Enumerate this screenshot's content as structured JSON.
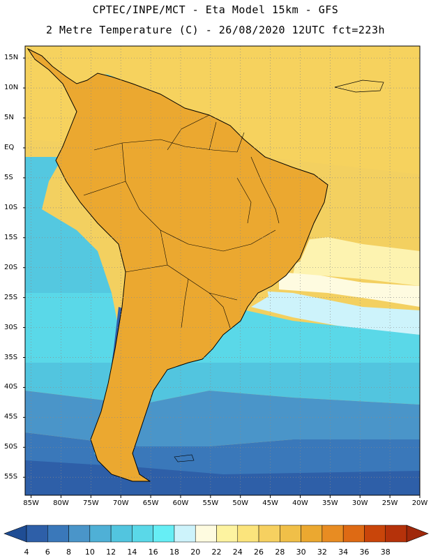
{
  "header": {
    "line1": "CPTEC/INPE/MCT -  Eta Model 15km - GFS",
    "line2": "2 Metre Temperature (C) - 26/08/2020 12UTC fct=223h"
  },
  "map": {
    "variable": "2 Metre Temperature",
    "units": "C",
    "lon_range": [
      -86,
      -20
    ],
    "lat_range": [
      -58,
      17
    ],
    "lat_ticks": [
      {
        "value": 15,
        "label": "15N"
      },
      {
        "value": 10,
        "label": "10N"
      },
      {
        "value": 5,
        "label": "5N"
      },
      {
        "value": 0,
        "label": "EQ"
      },
      {
        "value": -5,
        "label": "5S"
      },
      {
        "value": -10,
        "label": "10S"
      },
      {
        "value": -15,
        "label": "15S"
      },
      {
        "value": -20,
        "label": "20S"
      },
      {
        "value": -25,
        "label": "25S"
      },
      {
        "value": -30,
        "label": "30S"
      },
      {
        "value": -35,
        "label": "35S"
      },
      {
        "value": -40,
        "label": "40S"
      },
      {
        "value": -45,
        "label": "45S"
      },
      {
        "value": -50,
        "label": "50S"
      },
      {
        "value": -55,
        "label": "55S"
      }
    ],
    "lon_ticks": [
      {
        "value": -85,
        "label": "85W"
      },
      {
        "value": -80,
        "label": "80W"
      },
      {
        "value": -75,
        "label": "75W"
      },
      {
        "value": -70,
        "label": "70W"
      },
      {
        "value": -65,
        "label": "65W"
      },
      {
        "value": -60,
        "label": "60W"
      },
      {
        "value": -55,
        "label": "55W"
      },
      {
        "value": -50,
        "label": "50W"
      },
      {
        "value": -45,
        "label": "45W"
      },
      {
        "value": -40,
        "label": "40W"
      },
      {
        "value": -35,
        "label": "35W"
      },
      {
        "value": -30,
        "label": "30W"
      },
      {
        "value": -25,
        "label": "25W"
      },
      {
        "value": -20,
        "label": "20W"
      }
    ]
  },
  "colorbar": {
    "labels": [
      "4",
      "6",
      "8",
      "10",
      "12",
      "14",
      "16",
      "18",
      "20",
      "22",
      "24",
      "26",
      "28",
      "30",
      "32",
      "34",
      "36",
      "38"
    ],
    "colors": [
      "#2e5fa8",
      "#3a78ba",
      "#4a95c9",
      "#4fb0d6",
      "#52c5df",
      "#5ad8e8",
      "#66eef5",
      "#cdf3fb",
      "#fefbe0",
      "#fdf3a0",
      "#fbe47c",
      "#f6d060",
      "#f0bf48",
      "#eba830",
      "#e88c22",
      "#de6a14",
      "#c9450a",
      "#b5320a"
    ]
  }
}
